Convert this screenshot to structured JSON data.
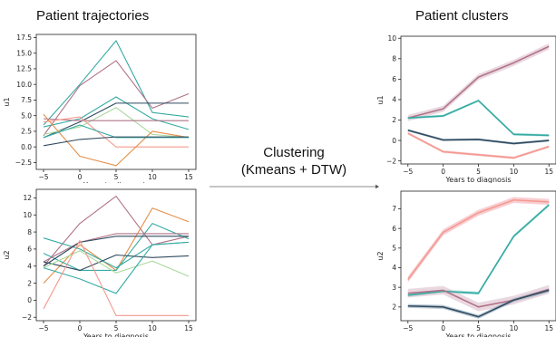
{
  "titles": {
    "left": "Patient trajectories",
    "right": "Patient clusters"
  },
  "center": {
    "line1": "Clustering",
    "line2": "(Kmeans + DTW)"
  },
  "colors": {
    "teal": "#35aaa3",
    "mauve": "#b07388",
    "orange": "#e48f4a",
    "salmon": "#f5998e",
    "lightgreen": "#a9d89c",
    "navy": "#2f4b5f",
    "dark": "#3f5560",
    "pinkband": "#f0a6ae",
    "tealband": "#7fd0c8",
    "mauveband": "#d8b8c6",
    "navyband": "#8aa0b4"
  },
  "chart_data": [
    {
      "id": "traj-u1",
      "type": "line",
      "title": "",
      "xlabel": "Years to diagnosis",
      "ylabel": "u1",
      "xlim": [
        -6,
        16
      ],
      "ylim": [
        -3.6,
        18
      ],
      "xticks": [
        -5,
        0,
        5,
        10,
        15
      ],
      "yticks": [
        -2.5,
        0.0,
        2.5,
        5.0,
        7.5,
        10.0,
        12.5,
        15.0,
        17.5
      ],
      "ytick_labels": [
        "−2.5",
        "0.0",
        "2.5",
        "5.0",
        "7.5",
        "10.0",
        "12.5",
        "15.0",
        "17.5"
      ],
      "grid": false,
      "x": [
        -5,
        0,
        5,
        10,
        15
      ],
      "series": [
        {
          "color": "teal",
          "values": [
            3.5,
            10.0,
            17.0,
            5.5,
            4.8
          ]
        },
        {
          "color": "mauve",
          "values": [
            1.8,
            9.8,
            13.8,
            6.2,
            8.5
          ]
        },
        {
          "color": "teal",
          "values": [
            3.2,
            4.5,
            8.0,
            4.5,
            2.8
          ]
        },
        {
          "color": "navy",
          "values": [
            1.5,
            4.0,
            7.0,
            7.0,
            7.0
          ]
        },
        {
          "color": "lightgreen",
          "values": [
            2.0,
            3.2,
            6.3,
            2.0,
            1.5
          ]
        },
        {
          "color": "mauve",
          "values": [
            4.5,
            4.2,
            4.2,
            4.2,
            4.2
          ]
        },
        {
          "color": "salmon",
          "values": [
            4.0,
            4.8,
            0.0,
            0.0,
            0.0
          ]
        },
        {
          "color": "orange",
          "values": [
            5.2,
            -1.5,
            -3.0,
            2.5,
            1.5
          ]
        },
        {
          "color": "teal",
          "values": [
            1.5,
            3.5,
            1.5,
            1.5,
            1.5
          ]
        },
        {
          "color": "navy",
          "values": [
            0.2,
            1.2,
            1.6,
            1.6,
            1.6
          ]
        }
      ]
    },
    {
      "id": "traj-u2",
      "type": "line",
      "title": "",
      "xlabel": "Years to diagnosis",
      "ylabel": "u2",
      "xlim": [
        -6,
        16
      ],
      "ylim": [
        -2.4,
        13
      ],
      "xticks": [
        -5,
        0,
        5,
        10,
        15
      ],
      "yticks": [
        -2,
        0,
        2,
        4,
        6,
        8,
        10,
        12
      ],
      "ytick_labels": [
        "−2",
        "0",
        "2",
        "4",
        "6",
        "8",
        "10",
        "12"
      ],
      "grid": false,
      "x": [
        -5,
        0,
        5,
        10,
        15
      ],
      "series": [
        {
          "color": "mauve",
          "values": [
            4.0,
            9.0,
            12.2,
            6.5,
            7.5
          ]
        },
        {
          "color": "orange",
          "values": [
            2.0,
            6.5,
            3.5,
            10.8,
            9.2
          ]
        },
        {
          "color": "teal",
          "values": [
            5.5,
            3.5,
            3.5,
            9.0,
            7.2
          ]
        },
        {
          "color": "teal",
          "values": [
            7.3,
            6.0,
            3.8,
            6.5,
            6.8
          ]
        },
        {
          "color": "mauve",
          "values": [
            4.5,
            6.8,
            7.8,
            7.8,
            7.8
          ]
        },
        {
          "color": "navy",
          "values": [
            4.0,
            6.8,
            7.5,
            7.5,
            7.5
          ]
        },
        {
          "color": "navy",
          "values": [
            4.5,
            3.5,
            5.3,
            5.0,
            5.2
          ]
        },
        {
          "color": "lightgreen",
          "values": [
            3.8,
            5.8,
            3.2,
            4.6,
            2.8
          ]
        },
        {
          "color": "teal",
          "values": [
            3.8,
            2.5,
            0.8,
            6.5,
            6.8
          ]
        },
        {
          "color": "salmon",
          "values": [
            -1.0,
            7.0,
            -1.8,
            -1.8,
            -1.8
          ]
        }
      ]
    },
    {
      "id": "clust-u1",
      "type": "line",
      "title": "",
      "xlabel": "Years to diagnosis",
      "ylabel": "u1",
      "xlim": [
        -6,
        16
      ],
      "ylim": [
        -2.3,
        10.2
      ],
      "xticks": [
        -5,
        0,
        5,
        10,
        15
      ],
      "yticks": [
        -2,
        0,
        2,
        4,
        6,
        8,
        10
      ],
      "ytick_labels": [
        "−2",
        "0",
        "2",
        "4",
        "6",
        "8",
        "10"
      ],
      "grid": false,
      "x": [
        -5,
        0,
        5,
        10,
        15
      ],
      "series": [
        {
          "color": "mauve",
          "band": "mauveband",
          "spread": 0.3,
          "values": [
            2.2,
            3.1,
            6.2,
            7.6,
            9.2
          ]
        },
        {
          "color": "teal",
          "band": "tealband",
          "spread": 0.12,
          "values": [
            2.2,
            2.4,
            3.9,
            0.6,
            0.5
          ]
        },
        {
          "color": "navy",
          "band": "navyband",
          "spread": 0.12,
          "values": [
            1.0,
            0.05,
            0.1,
            -0.3,
            0.0
          ]
        },
        {
          "color": "salmon",
          "band": "pinkband",
          "spread": 0.12,
          "values": [
            0.7,
            -1.1,
            -1.4,
            -1.7,
            -0.6
          ]
        }
      ]
    },
    {
      "id": "clust-u2",
      "type": "line",
      "title": "",
      "xlabel": "Years to diagnosis",
      "ylabel": "u2",
      "xlim": [
        -6,
        16
      ],
      "ylim": [
        1.3,
        7.9
      ],
      "xticks": [
        -5,
        0,
        5,
        10,
        15
      ],
      "yticks": [
        2,
        3,
        4,
        5,
        6,
        7
      ],
      "ytick_labels": [
        "2",
        "3",
        "4",
        "5",
        "6",
        "7"
      ],
      "grid": false,
      "x": [
        -5,
        0,
        5,
        10,
        15
      ],
      "series": [
        {
          "color": "salmon",
          "band": "pinkband",
          "spread": 0.15,
          "values": [
            3.4,
            5.8,
            6.8,
            7.45,
            7.35
          ]
        },
        {
          "color": "teal",
          "band": "tealband",
          "spread": 0.08,
          "values": [
            2.6,
            2.8,
            2.7,
            5.6,
            7.2
          ]
        },
        {
          "color": "mauve",
          "band": "mauveband",
          "spread": 0.22,
          "values": [
            2.7,
            2.85,
            2.0,
            2.35,
            2.9
          ]
        },
        {
          "color": "navy",
          "band": "navyband",
          "spread": 0.1,
          "values": [
            2.05,
            2.0,
            1.5,
            2.35,
            2.85
          ]
        }
      ]
    }
  ]
}
